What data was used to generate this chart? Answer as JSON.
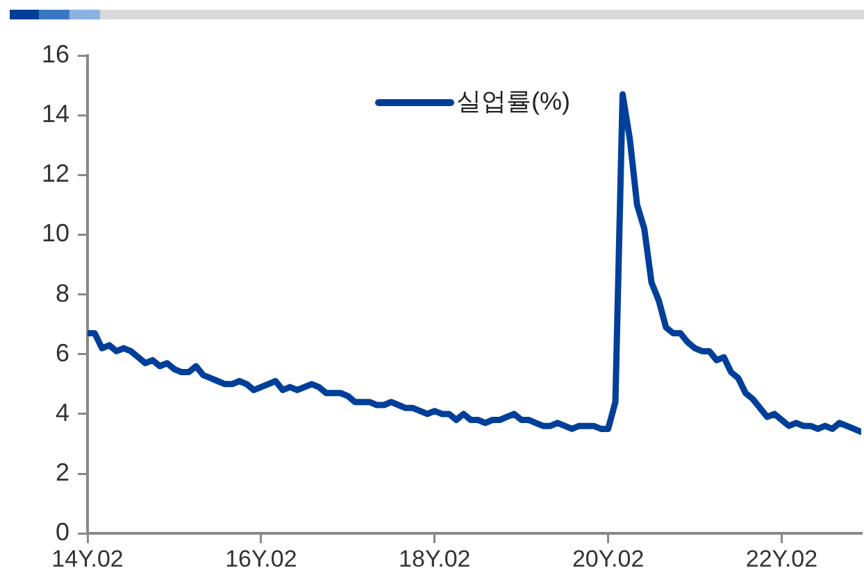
{
  "chart_data": {
    "type": "line",
    "categories": [
      "14Y.02",
      null,
      null,
      null,
      null,
      null,
      null,
      null,
      null,
      null,
      null,
      null,
      null,
      null,
      null,
      null,
      null,
      null,
      null,
      null,
      null,
      null,
      null,
      null,
      "16Y.02",
      null,
      null,
      null,
      null,
      null,
      null,
      null,
      null,
      null,
      null,
      null,
      null,
      null,
      null,
      null,
      null,
      null,
      null,
      null,
      null,
      null,
      null,
      null,
      "18Y.02",
      null,
      null,
      null,
      null,
      null,
      null,
      null,
      null,
      null,
      null,
      null,
      null,
      null,
      null,
      null,
      null,
      null,
      null,
      null,
      null,
      null,
      null,
      null,
      "20Y.02",
      null,
      null,
      null,
      null,
      null,
      null,
      null,
      null,
      null,
      null,
      null,
      null,
      null,
      null,
      null,
      null,
      null,
      null,
      null,
      null,
      null,
      null,
      null,
      "22Y.02",
      null,
      null,
      null,
      null,
      null,
      null,
      null,
      null,
      null,
      null,
      null
    ],
    "series": [
      {
        "name": "실업률(%)",
        "color": "#003f99",
        "values": [
          6.7,
          6.7,
          6.2,
          6.3,
          6.1,
          6.2,
          6.1,
          5.9,
          5.7,
          5.8,
          5.6,
          5.7,
          5.5,
          5.4,
          5.4,
          5.6,
          5.3,
          5.2,
          5.1,
          5.0,
          5.0,
          5.1,
          5.0,
          4.8,
          4.9,
          5.0,
          5.1,
          4.8,
          4.9,
          4.8,
          4.9,
          5.0,
          4.9,
          4.7,
          4.7,
          4.7,
          4.6,
          4.4,
          4.4,
          4.4,
          4.3,
          4.3,
          4.4,
          4.3,
          4.2,
          4.2,
          4.1,
          4.0,
          4.1,
          4.0,
          4.0,
          3.8,
          4.0,
          3.8,
          3.8,
          3.7,
          3.8,
          3.8,
          3.9,
          4.0,
          3.8,
          3.8,
          3.7,
          3.6,
          3.6,
          3.7,
          3.6,
          3.5,
          3.6,
          3.6,
          3.6,
          3.5,
          3.5,
          4.4,
          14.7,
          13.2,
          11.0,
          10.2,
          8.4,
          7.8,
          6.9,
          6.7,
          6.7,
          6.4,
          6.2,
          6.1,
          6.1,
          5.8,
          5.9,
          5.4,
          5.2,
          4.7,
          4.5,
          4.2,
          3.9,
          4.0,
          3.8,
          3.6,
          3.7,
          3.6,
          3.6,
          3.5,
          3.6,
          3.5,
          3.7,
          3.6,
          3.5,
          3.4
        ]
      }
    ],
    "ylim": [
      0,
      16
    ],
    "yticks": [
      0,
      2,
      4,
      6,
      8,
      10,
      12,
      14,
      16
    ],
    "grid": false,
    "legend": "top",
    "marker": "none",
    "line_style": "solid"
  }
}
